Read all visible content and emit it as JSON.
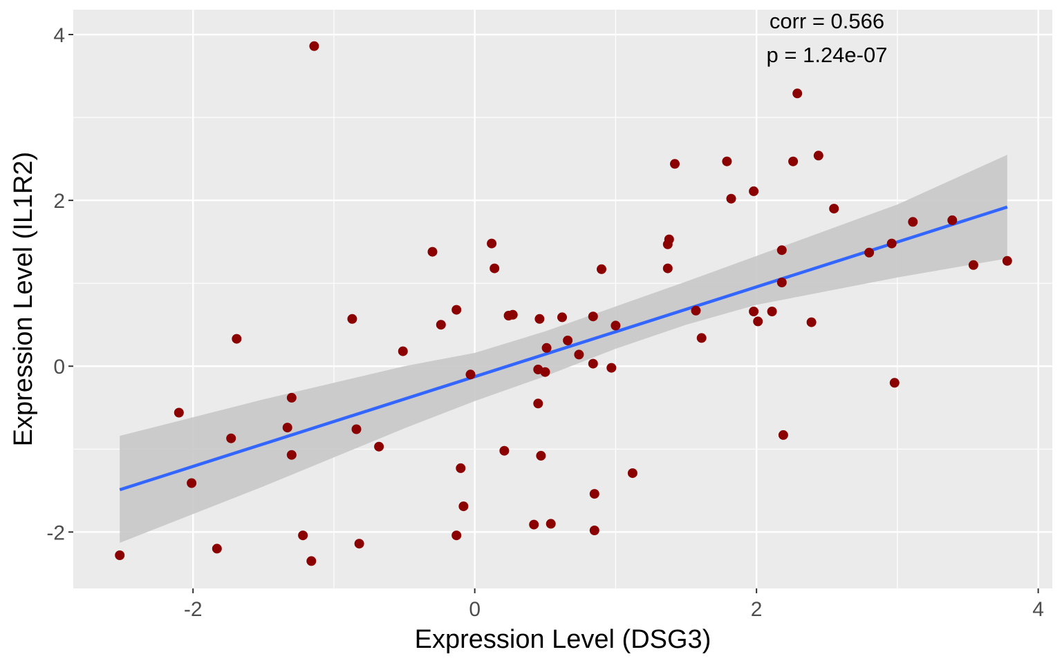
{
  "chart_data": {
    "type": "scatter",
    "title": "",
    "xlabel": "Expression Level (DSG3)",
    "ylabel": "Expression Level (IL1R2)",
    "xlim": [
      -2.85,
      4.1
    ],
    "ylim": [
      -2.68,
      4.3
    ],
    "x_ticks": [
      -2,
      0,
      2,
      4
    ],
    "y_ticks": [
      -2,
      0,
      2,
      4
    ],
    "x_tick_labels": [
      "-2",
      "0",
      "2",
      "4"
    ],
    "y_tick_labels": [
      "-2",
      "0",
      "2",
      "4"
    ],
    "grid": true,
    "annotations": [
      "corr = 0.566",
      "p = 1.24e-07"
    ],
    "colors": {
      "panel": "#ebebeb",
      "grid": "#ffffff",
      "points": "#8b0000",
      "fit_line": "#3366ff",
      "confidence_band": "#c8c8c8"
    },
    "points": [
      [
        -1.14,
        3.86
      ],
      [
        -0.3,
        1.38
      ],
      [
        -0.13,
        0.68
      ],
      [
        -0.24,
        0.5
      ],
      [
        -0.87,
        0.57
      ],
      [
        -0.51,
        0.18
      ],
      [
        -1.69,
        0.33
      ],
      [
        -2.1,
        -0.56
      ],
      [
        -1.3,
        -0.38
      ],
      [
        -1.73,
        -0.87
      ],
      [
        -1.33,
        -0.74
      ],
      [
        -1.3,
        -1.07
      ],
      [
        -2.01,
        -1.41
      ],
      [
        -0.84,
        -0.76
      ],
      [
        -0.68,
        -0.97
      ],
      [
        -0.03,
        -0.1
      ],
      [
        -0.1,
        -1.23
      ],
      [
        -0.08,
        -1.69
      ],
      [
        -0.13,
        -2.04
      ],
      [
        -1.22,
        -2.04
      ],
      [
        -0.82,
        -2.14
      ],
      [
        -1.83,
        -2.2
      ],
      [
        -1.16,
        -2.35
      ],
      [
        -2.52,
        -2.28
      ],
      [
        0.12,
        1.48
      ],
      [
        0.14,
        1.18
      ],
      [
        0.24,
        0.61
      ],
      [
        0.27,
        0.62
      ],
      [
        0.46,
        0.57
      ],
      [
        0.62,
        0.59
      ],
      [
        0.84,
        0.6
      ],
      [
        0.51,
        0.22
      ],
      [
        0.66,
        0.31
      ],
      [
        0.74,
        0.14
      ],
      [
        0.84,
        0.03
      ],
      [
        0.97,
        -0.02
      ],
      [
        1.0,
        0.49
      ],
      [
        0.9,
        1.17
      ],
      [
        0.45,
        -0.04
      ],
      [
        0.5,
        -0.07
      ],
      [
        0.45,
        -0.45
      ],
      [
        0.47,
        -1.08
      ],
      [
        0.21,
        -1.02
      ],
      [
        1.12,
        -1.29
      ],
      [
        0.85,
        -1.54
      ],
      [
        0.42,
        -1.91
      ],
      [
        0.54,
        -1.9
      ],
      [
        0.85,
        -1.98
      ],
      [
        1.37,
        1.47
      ],
      [
        1.38,
        1.53
      ],
      [
        1.42,
        2.44
      ],
      [
        1.37,
        1.18
      ],
      [
        1.57,
        0.67
      ],
      [
        1.61,
        0.34
      ],
      [
        1.79,
        2.47
      ],
      [
        1.82,
        2.02
      ],
      [
        1.98,
        2.11
      ],
      [
        1.98,
        0.66
      ],
      [
        2.01,
        0.54
      ],
      [
        2.11,
        0.66
      ],
      [
        2.18,
        1.4
      ],
      [
        2.18,
        1.01
      ],
      [
        2.19,
        -0.83
      ],
      [
        2.26,
        2.47
      ],
      [
        2.29,
        3.29
      ],
      [
        2.44,
        2.54
      ],
      [
        2.39,
        0.53
      ],
      [
        2.55,
        1.9
      ],
      [
        2.8,
        1.37
      ],
      [
        2.96,
        1.48
      ],
      [
        2.98,
        -0.2
      ],
      [
        3.11,
        1.74
      ],
      [
        3.39,
        1.76
      ],
      [
        3.54,
        1.22
      ],
      [
        3.78,
        1.27
      ]
    ],
    "fit_line": {
      "x": [
        -2.52,
        3.78
      ],
      "y": [
        -1.49,
        1.92
      ]
    },
    "confidence_band": {
      "x": [
        -2.52,
        -1.5,
        -0.5,
        0.0,
        0.5,
        1.0,
        1.5,
        2.0,
        3.0,
        3.78
      ],
      "upper": [
        -0.84,
        -0.4,
        0.0,
        0.16,
        0.42,
        0.72,
        1.02,
        1.33,
        1.95,
        2.55
      ],
      "lower": [
        -2.13,
        -1.45,
        -0.75,
        -0.42,
        -0.12,
        0.21,
        0.5,
        0.74,
        1.07,
        1.3
      ]
    }
  }
}
